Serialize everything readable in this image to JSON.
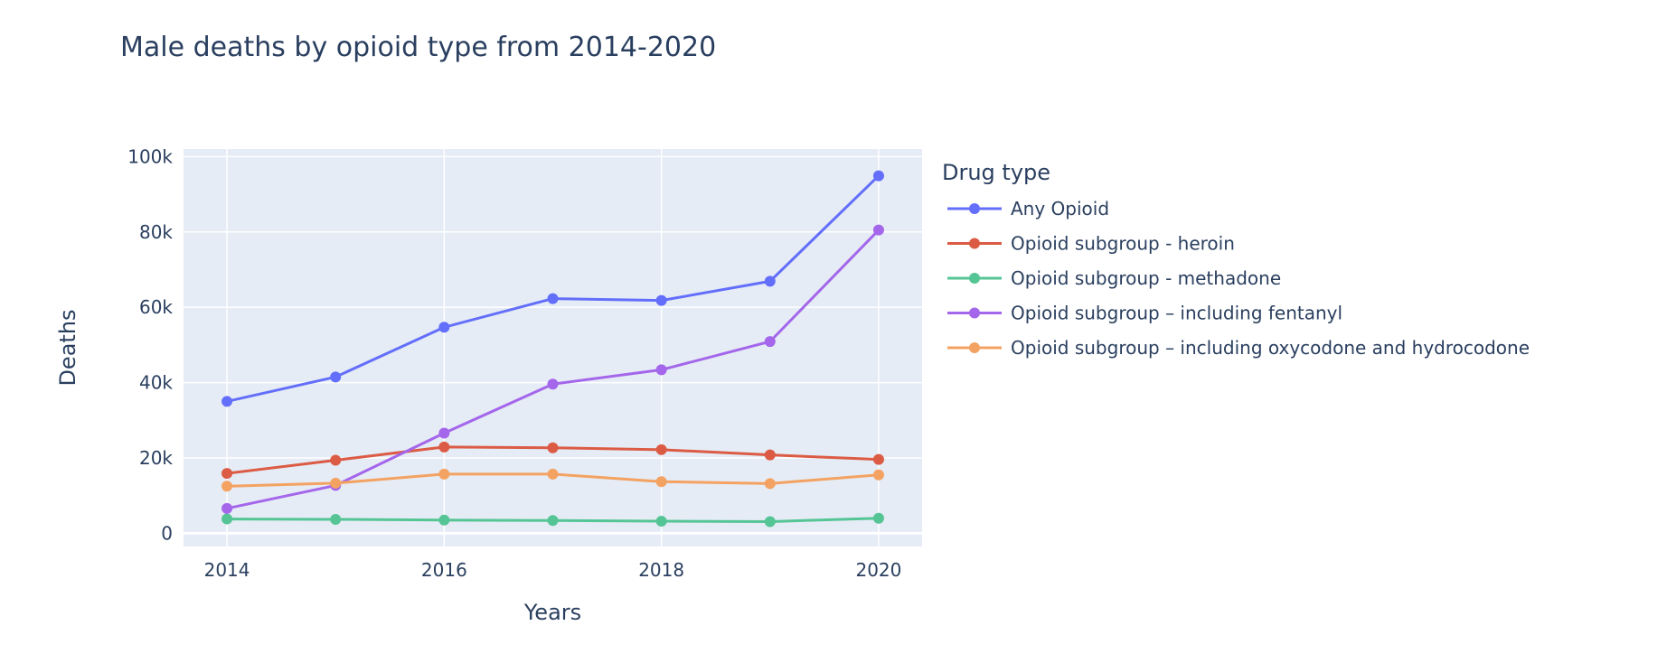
{
  "chart_data": {
    "type": "line",
    "title": "Male deaths by opioid type from 2014-2020",
    "xlabel": "Years",
    "ylabel": "Deaths",
    "x": [
      2014,
      2015,
      2016,
      2017,
      2018,
      2019,
      2020
    ],
    "xlim": [
      2013.6,
      2020.4
    ],
    "ylim": [
      -3500,
      102000
    ],
    "x_ticks": [
      2014,
      2016,
      2018,
      2020
    ],
    "x_tick_labels": [
      "2014",
      "2016",
      "2018",
      "2020"
    ],
    "y_ticks": [
      0,
      20000,
      40000,
      60000,
      80000,
      100000
    ],
    "y_tick_labels": [
      "0",
      "20k",
      "40k",
      "60k",
      "80k",
      "100k"
    ],
    "grid": true,
    "legend": {
      "title": "Drug type",
      "position": "right"
    },
    "series": [
      {
        "name": "Any Opioid",
        "color": "#636efa",
        "values": [
          35000,
          41500,
          54700,
          62300,
          61800,
          66900,
          94900
        ]
      },
      {
        "name": "Opioid subgroup - heroin",
        "color": "#dc5b44",
        "values": [
          15900,
          19400,
          22900,
          22700,
          22200,
          20800,
          19600
        ]
      },
      {
        "name": "Opioid subgroup - methadone",
        "color": "#55c595",
        "values": [
          3800,
          3700,
          3500,
          3400,
          3200,
          3100,
          4000
        ]
      },
      {
        "name": "Opioid subgroup – including fentanyl",
        "color": "#a466ea",
        "values": [
          6600,
          12700,
          26600,
          39600,
          43400,
          50900,
          80500
        ]
      },
      {
        "name": "Opioid subgroup – including oxycodone and hydrocodone",
        "color": "#f4a261",
        "values": [
          12500,
          13300,
          15700,
          15700,
          13700,
          13200,
          15500
        ]
      }
    ]
  }
}
